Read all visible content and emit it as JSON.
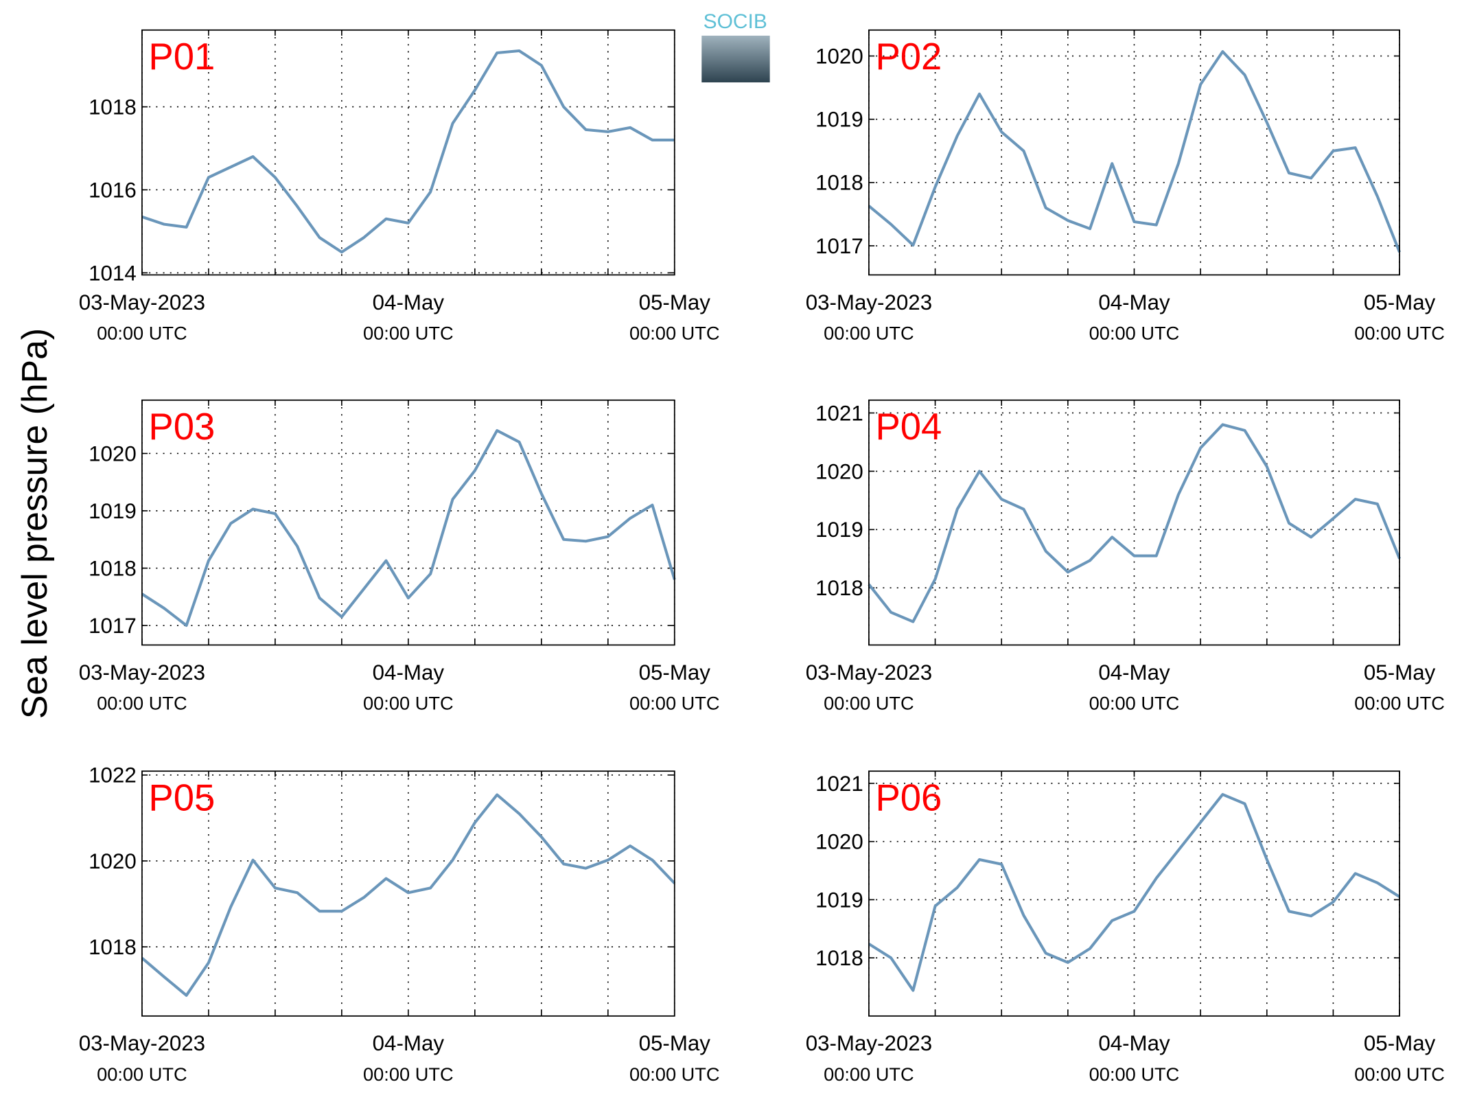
{
  "ylabel": "Sea level pressure (hPa)",
  "logo": "SOCIB",
  "chart_data": [
    {
      "type": "line",
      "title": "P01",
      "color": "#6a96ba",
      "grid": true,
      "x": [
        0,
        2,
        4,
        6,
        8,
        10,
        12,
        14,
        16,
        18,
        20,
        22,
        24,
        26,
        28,
        30,
        32,
        34,
        36,
        38,
        40,
        42,
        44,
        46,
        48
      ],
      "values": [
        1015.35,
        1015.17,
        1015.1,
        1016.3,
        1016.55,
        1016.8,
        1016.3,
        1015.6,
        1014.85,
        1014.5,
        1014.85,
        1015.3,
        1015.2,
        1015.95,
        1017.6,
        1018.4,
        1019.3,
        1019.35,
        1019.0,
        1018.0,
        1017.45,
        1017.4,
        1017.5,
        1017.2,
        1017.2
      ],
      "xlim": [
        0,
        48
      ],
      "ylim": [
        1013.95,
        1019.85
      ],
      "yticks": [
        1014,
        1016,
        1018
      ],
      "xticks": [
        {
          "value": 0,
          "label": "03-May-2023",
          "sublabel": "00:00 UTC"
        },
        {
          "value": 6,
          "label": null
        },
        {
          "value": 12,
          "label": null
        },
        {
          "value": 18,
          "label": null
        },
        {
          "value": 24,
          "label": "04-May",
          "sublabel": "00:00 UTC"
        },
        {
          "value": 30,
          "label": null
        },
        {
          "value": 36,
          "label": null
        },
        {
          "value": 42,
          "label": null
        },
        {
          "value": 48,
          "label": "05-May",
          "sublabel": "00:00 UTC"
        }
      ]
    },
    {
      "type": "line",
      "title": "P02",
      "color": "#6a96ba",
      "grid": true,
      "x": [
        0,
        2,
        4,
        6,
        8,
        10,
        12,
        14,
        16,
        18,
        20,
        22,
        24,
        26,
        28,
        30,
        32,
        34,
        36,
        38,
        40,
        42,
        44,
        46,
        48
      ],
      "values": [
        1017.63,
        1017.34,
        1017.01,
        1017.93,
        1018.74,
        1019.4,
        1018.8,
        1018.5,
        1017.6,
        1017.4,
        1017.27,
        1018.3,
        1017.38,
        1017.33,
        1018.3,
        1019.55,
        1020.07,
        1019.7,
        1018.95,
        1018.15,
        1018.07,
        1018.5,
        1018.55,
        1017.78,
        1016.9
      ],
      "xlim": [
        0,
        48
      ],
      "ylim": [
        1016.54,
        1020.41
      ],
      "yticks": [
        1017,
        1018,
        1019,
        1020
      ],
      "xticks": [
        {
          "value": 0,
          "label": "03-May-2023",
          "sublabel": "00:00 UTC"
        },
        {
          "value": 6,
          "label": null
        },
        {
          "value": 12,
          "label": null
        },
        {
          "value": 18,
          "label": null
        },
        {
          "value": 24,
          "label": "04-May",
          "sublabel": "00:00 UTC"
        },
        {
          "value": 30,
          "label": null
        },
        {
          "value": 36,
          "label": null
        },
        {
          "value": 42,
          "label": null
        },
        {
          "value": 48,
          "label": "05-May",
          "sublabel": "00:00 UTC"
        }
      ]
    },
    {
      "type": "line",
      "title": "P03",
      "color": "#6a96ba",
      "grid": true,
      "x": [
        0,
        2,
        4,
        6,
        8,
        10,
        12,
        14,
        16,
        18,
        20,
        22,
        24,
        26,
        28,
        30,
        32,
        34,
        36,
        38,
        40,
        42,
        44,
        46,
        48
      ],
      "values": [
        1017.55,
        1017.3,
        1017.0,
        1018.13,
        1018.78,
        1019.03,
        1018.95,
        1018.38,
        1017.48,
        1017.15,
        1017.64,
        1018.13,
        1017.48,
        1017.9,
        1019.2,
        1019.7,
        1020.4,
        1020.2,
        1019.3,
        1018.5,
        1018.47,
        1018.55,
        1018.87,
        1019.1,
        1017.8
      ],
      "xlim": [
        0,
        48
      ],
      "ylim": [
        1016.66,
        1020.93
      ],
      "yticks": [
        1017,
        1018,
        1019,
        1020
      ],
      "xticks": [
        {
          "value": 0,
          "label": "03-May-2023",
          "sublabel": "00:00 UTC"
        },
        {
          "value": 6,
          "label": null
        },
        {
          "value": 12,
          "label": null
        },
        {
          "value": 18,
          "label": null
        },
        {
          "value": 24,
          "label": "04-May",
          "sublabel": "00:00 UTC"
        },
        {
          "value": 30,
          "label": null
        },
        {
          "value": 36,
          "label": null
        },
        {
          "value": 42,
          "label": null
        },
        {
          "value": 48,
          "label": "05-May",
          "sublabel": "00:00 UTC"
        }
      ]
    },
    {
      "type": "line",
      "title": "P04",
      "color": "#6a96ba",
      "grid": true,
      "x": [
        0,
        2,
        4,
        6,
        8,
        10,
        12,
        14,
        16,
        18,
        20,
        22,
        24,
        26,
        28,
        30,
        32,
        34,
        36,
        38,
        40,
        42,
        44,
        46,
        48
      ],
      "values": [
        1018.06,
        1017.58,
        1017.42,
        1018.15,
        1019.35,
        1020.0,
        1019.52,
        1019.35,
        1018.63,
        1018.27,
        1018.47,
        1018.87,
        1018.55,
        1018.55,
        1019.6,
        1020.4,
        1020.8,
        1020.7,
        1020.08,
        1019.11,
        1018.87,
        1019.19,
        1019.52,
        1019.44,
        1018.5
      ],
      "xlim": [
        0,
        48
      ],
      "ylim": [
        1017.02,
        1021.22
      ],
      "yticks": [
        1018,
        1019,
        1020,
        1021
      ],
      "xticks": [
        {
          "value": 0,
          "label": "03-May-2023",
          "sublabel": "00:00 UTC"
        },
        {
          "value": 6,
          "label": null
        },
        {
          "value": 12,
          "label": null
        },
        {
          "value": 18,
          "label": null
        },
        {
          "value": 24,
          "label": "04-May",
          "sublabel": "00:00 UTC"
        },
        {
          "value": 30,
          "label": null
        },
        {
          "value": 36,
          "label": null
        },
        {
          "value": 42,
          "label": null
        },
        {
          "value": 48,
          "label": "05-May",
          "sublabel": "00:00 UTC"
        }
      ]
    },
    {
      "type": "line",
      "title": "P05",
      "color": "#6a96ba",
      "grid": true,
      "x": [
        0,
        2,
        4,
        6,
        8,
        10,
        12,
        14,
        16,
        18,
        20,
        22,
        24,
        26,
        28,
        30,
        32,
        34,
        36,
        38,
        40,
        42,
        44,
        46,
        48
      ],
      "values": [
        1017.74,
        1017.3,
        1016.87,
        1017.63,
        1018.93,
        1020.02,
        1019.37,
        1019.26,
        1018.83,
        1018.83,
        1019.15,
        1019.59,
        1019.26,
        1019.37,
        1020.02,
        1020.89,
        1021.54,
        1021.1,
        1020.56,
        1019.93,
        1019.83,
        1020.02,
        1020.35,
        1020.02,
        1019.48
      ],
      "xlim": [
        0,
        48
      ],
      "ylim": [
        1016.39,
        1022.09
      ],
      "yticks": [
        1018,
        1020,
        1022
      ],
      "xticks": [
        {
          "value": 0,
          "label": "03-May-2023",
          "sublabel": "00:00 UTC"
        },
        {
          "value": 6,
          "label": null
        },
        {
          "value": 12,
          "label": null
        },
        {
          "value": 18,
          "label": null
        },
        {
          "value": 24,
          "label": "04-May",
          "sublabel": "00:00 UTC"
        },
        {
          "value": 30,
          "label": null
        },
        {
          "value": 36,
          "label": null
        },
        {
          "value": 42,
          "label": null
        },
        {
          "value": 48,
          "label": "05-May",
          "sublabel": "00:00 UTC"
        }
      ]
    },
    {
      "type": "line",
      "title": "P06",
      "color": "#6a96ba",
      "grid": true,
      "x": [
        0,
        2,
        4,
        6,
        8,
        10,
        12,
        14,
        16,
        18,
        20,
        22,
        24,
        26,
        28,
        30,
        32,
        34,
        36,
        38,
        40,
        42,
        44,
        46,
        48
      ],
      "values": [
        1018.24,
        1018.0,
        1017.44,
        1018.89,
        1019.21,
        1019.69,
        1019.61,
        1018.73,
        1018.08,
        1017.92,
        1018.16,
        1018.64,
        1018.8,
        1019.37,
        1019.85,
        1020.33,
        1020.81,
        1020.65,
        1019.69,
        1018.8,
        1018.72,
        1018.96,
        1019.45,
        1019.29,
        1019.05
      ],
      "xlim": [
        0,
        48
      ],
      "ylim": [
        1017.0,
        1021.21
      ],
      "yticks": [
        1018,
        1019,
        1020,
        1021
      ],
      "xticks": [
        {
          "value": 0,
          "label": "03-May-2023",
          "sublabel": "00:00 UTC"
        },
        {
          "value": 6,
          "label": null
        },
        {
          "value": 12,
          "label": null
        },
        {
          "value": 18,
          "label": null
        },
        {
          "value": 24,
          "label": "04-May",
          "sublabel": "00:00 UTC"
        },
        {
          "value": 30,
          "label": null
        },
        {
          "value": 36,
          "label": null
        },
        {
          "value": 42,
          "label": null
        },
        {
          "value": 48,
          "label": "05-May",
          "sublabel": "00:00 UTC"
        }
      ]
    }
  ]
}
